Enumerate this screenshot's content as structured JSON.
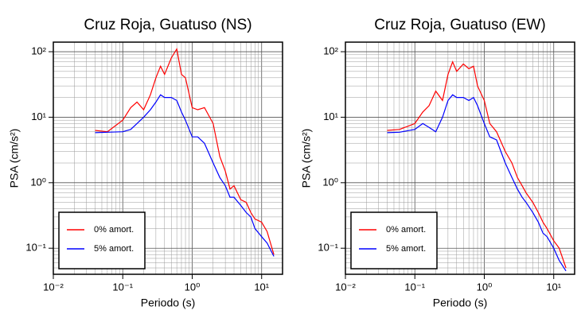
{
  "chart_data": [
    {
      "type": "line",
      "title": "Cruz Roja, Guatuso (NS)",
      "x_label": "Periodo (s)",
      "y_label": "PSA (cm/s²)",
      "log_x": true,
      "log_y": true,
      "grid": true,
      "legend": "lower left",
      "xlim": [
        0.01,
        20
      ],
      "ylim": [
        0.04,
        140
      ],
      "xticks": [
        {
          "value": 0.01,
          "label": "10⁻²"
        },
        {
          "value": 0.1,
          "label": "10⁻¹"
        },
        {
          "value": 1,
          "label": "10⁰"
        },
        {
          "value": 10,
          "label": "10¹"
        }
      ],
      "yticks": [
        {
          "value": 0.1,
          "label": "10⁻¹"
        },
        {
          "value": 1,
          "label": "10⁰"
        },
        {
          "value": 10,
          "label": "10¹"
        },
        {
          "value": 100,
          "label": "10²"
        }
      ],
      "x": [
        0.04,
        0.06,
        0.1,
        0.13,
        0.16,
        0.2,
        0.25,
        0.3,
        0.35,
        0.4,
        0.5,
        0.6,
        0.7,
        0.8,
        1.0,
        1.2,
        1.5,
        2,
        2.5,
        3,
        3.5,
        4,
        5,
        6,
        7,
        8,
        10,
        12,
        15
      ],
      "series": [
        {
          "name": "0% amort.",
          "color": "#ff0000",
          "values": [
            6.3,
            6,
            9,
            14,
            17,
            13,
            22,
            40,
            60,
            45,
            80,
            110,
            45,
            40,
            14,
            13,
            14,
            8,
            2.5,
            1.5,
            0.8,
            0.9,
            0.55,
            0.5,
            0.35,
            0.28,
            0.25,
            0.18,
            0.08
          ]
        },
        {
          "name": "5% amort.",
          "color": "#0000ff",
          "values": [
            5.8,
            5.9,
            6,
            6.5,
            8,
            10,
            13,
            17,
            22,
            20,
            20,
            18,
            12,
            9,
            5,
            5,
            4,
            2,
            1.2,
            0.9,
            0.6,
            0.6,
            0.45,
            0.35,
            0.3,
            0.2,
            0.15,
            0.12,
            0.075
          ]
        }
      ]
    },
    {
      "type": "line",
      "title": "Cruz Roja, Guatuso (EW)",
      "x_label": "Periodo (s)",
      "y_label": "PSA (cm/s²)",
      "log_x": true,
      "log_y": true,
      "grid": true,
      "legend": "lower left",
      "xlim": [
        0.01,
        20
      ],
      "ylim": [
        0.04,
        140
      ],
      "xticks": [
        {
          "value": 0.01,
          "label": "10⁻²"
        },
        {
          "value": 0.1,
          "label": "10⁻¹"
        },
        {
          "value": 1,
          "label": "10⁰"
        },
        {
          "value": 10,
          "label": "10¹"
        }
      ],
      "yticks": [
        {
          "value": 0.1,
          "label": "10⁻¹"
        },
        {
          "value": 1,
          "label": "10⁰"
        },
        {
          "value": 10,
          "label": "10¹"
        },
        {
          "value": 100,
          "label": "10²"
        }
      ],
      "x": [
        0.04,
        0.06,
        0.1,
        0.13,
        0.16,
        0.2,
        0.25,
        0.3,
        0.35,
        0.4,
        0.5,
        0.6,
        0.7,
        0.8,
        1.0,
        1.2,
        1.5,
        2,
        2.5,
        3,
        3.5,
        4,
        5,
        6,
        7,
        8,
        10,
        12,
        15
      ],
      "series": [
        {
          "name": "0% amort.",
          "color": "#ff0000",
          "values": [
            6.3,
            6.5,
            8,
            12,
            15,
            25,
            18,
            45,
            70,
            50,
            65,
            55,
            60,
            30,
            18,
            8,
            6,
            3,
            2,
            1.2,
            0.9,
            0.7,
            0.5,
            0.35,
            0.25,
            0.2,
            0.13,
            0.1,
            0.05
          ]
        },
        {
          "name": "5% amort.",
          "color": "#0000ff",
          "values": [
            5.8,
            5.9,
            6.5,
            8,
            7,
            6,
            10,
            18,
            22,
            20,
            20,
            18,
            20,
            15,
            8,
            5,
            4.5,
            2,
            1.2,
            0.8,
            0.6,
            0.5,
            0.35,
            0.25,
            0.17,
            0.15,
            0.1,
            0.065,
            0.045
          ]
        }
      ]
    }
  ]
}
